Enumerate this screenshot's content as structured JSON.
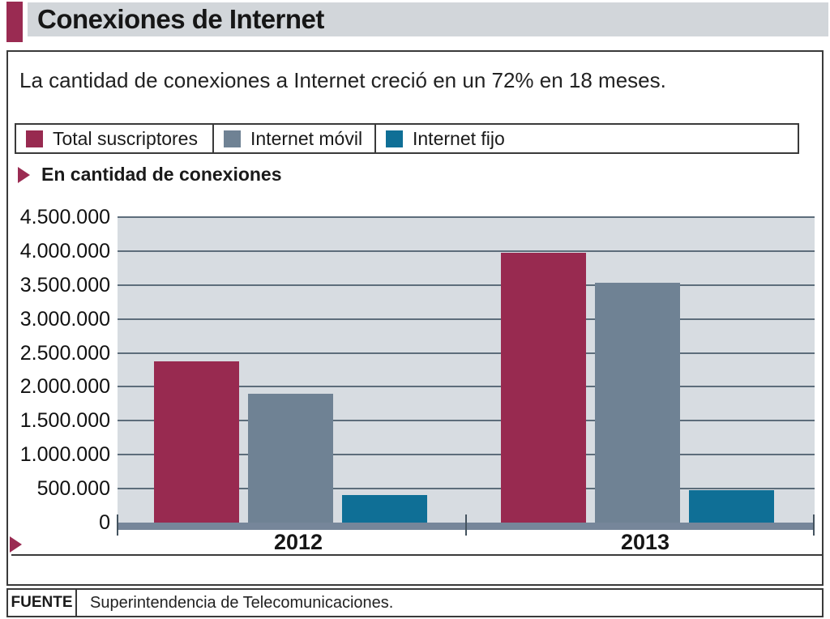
{
  "header": {
    "title": "Conexiones de Internet",
    "accent_color": "#9a2b52",
    "band_color": "#d2d6da"
  },
  "subtitle": "La cantidad de conexiones a Internet creció en un 72% en 18 meses.",
  "legend": {
    "items": [
      {
        "label": "Total suscriptores",
        "color": "#982a50"
      },
      {
        "label": "Internet móvil",
        "color": "#6f8294"
      },
      {
        "label": "Internet fijo",
        "color": "#0f6f96"
      }
    ]
  },
  "section_label": "En cantidad de conexiones",
  "chart_data": {
    "type": "bar",
    "title": "En cantidad de conexiones",
    "categories": [
      "2012",
      "2013"
    ],
    "series": [
      {
        "name": "Total suscriptores",
        "color": "#982a50",
        "values": [
          2370000,
          3980000
        ]
      },
      {
        "name": "Internet móvil",
        "color": "#6f8294",
        "values": [
          1900000,
          3530000
        ]
      },
      {
        "name": "Internet fijo",
        "color": "#0f6f96",
        "values": [
          400000,
          480000
        ]
      }
    ],
    "xlabel": "",
    "ylabel": "",
    "ylim": [
      0,
      4500000
    ],
    "ytick_step": 500000,
    "ytick_labels": [
      "4.500.000",
      "4.000.000",
      "3.500.000",
      "3.000.000",
      "2.500.000",
      "2.000.000",
      "1.500.000",
      "1.000.000",
      "500.000",
      "0"
    ],
    "grid": true,
    "legend_position": "top",
    "plot_bg_color": "#d7dce1",
    "gridline_color": "#5d6d7b",
    "baseline_color": "#76869a"
  },
  "footer": {
    "label": "FUENTE",
    "text": "Superintendencia de Telecomunicaciones."
  }
}
